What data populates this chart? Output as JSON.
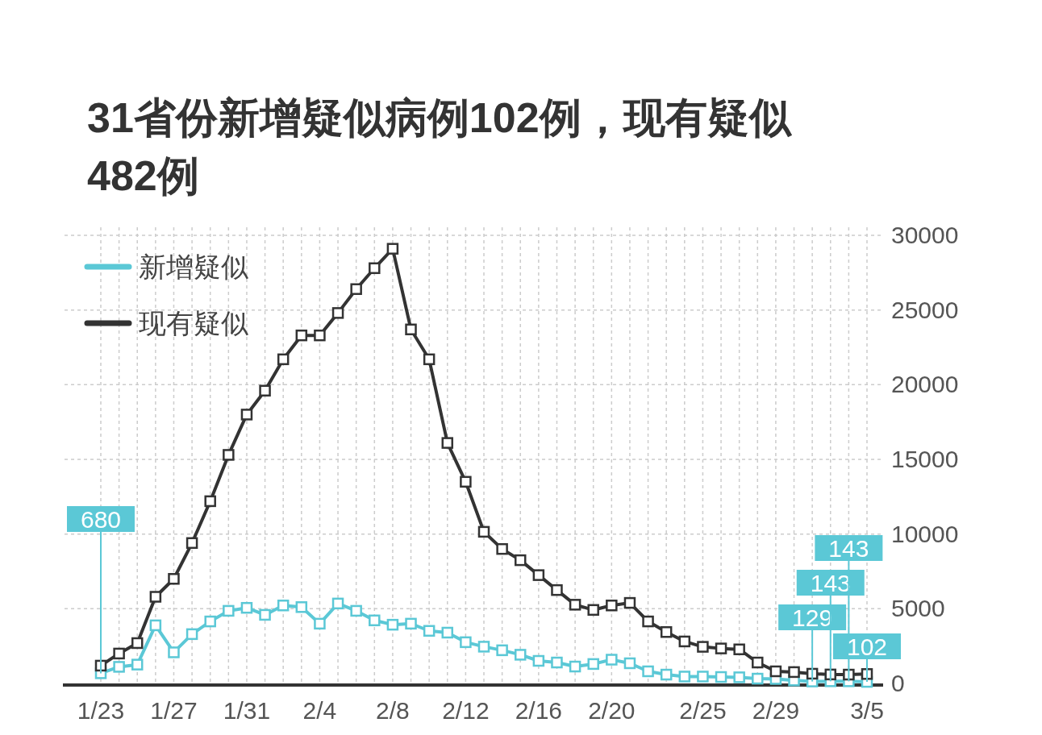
{
  "chart_data": {
    "type": "line",
    "title": "31省份新增疑似病例102例，现有疑似482例",
    "categories": [
      "1/23",
      null,
      null,
      null,
      "1/27",
      null,
      null,
      null,
      "1/31",
      null,
      null,
      null,
      "2/4",
      null,
      null,
      null,
      "2/8",
      null,
      null,
      null,
      "2/12",
      null,
      null,
      null,
      "2/16",
      null,
      null,
      null,
      "2/20",
      null,
      null,
      null,
      null,
      "2/25",
      null,
      null,
      null,
      "2/29",
      null,
      null,
      null,
      null,
      "3/5"
    ],
    "series": [
      {
        "name": "新增疑似",
        "color": "#5bc8d6",
        "values": [
          680,
          1110,
          1260,
          3890,
          2080,
          3300,
          4150,
          4860,
          5060,
          4590,
          5220,
          5110,
          4000,
          5350,
          4860,
          4220,
          3930,
          4000,
          3520,
          3400,
          2760,
          2460,
          2220,
          1920,
          1510,
          1400,
          1130,
          1300,
          1590,
          1350,
          810,
          590,
          460,
          460,
          430,
          410,
          320,
          300,
          200,
          129,
          143,
          143,
          102
        ],
        "value_labels": [
          "680",
          null,
          null,
          null,
          null,
          null,
          null,
          null,
          null,
          null,
          null,
          null,
          null,
          null,
          null,
          null,
          null,
          null,
          null,
          null,
          null,
          null,
          null,
          null,
          null,
          null,
          null,
          null,
          null,
          null,
          null,
          null,
          null,
          null,
          null,
          null,
          null,
          null,
          null,
          "129",
          "143",
          "143",
          "102"
        ]
      },
      {
        "name": "现有疑似",
        "color": "#333333",
        "values": [
          1190,
          2000,
          2700,
          5800,
          7000,
          9400,
          12200,
          15300,
          18000,
          19600,
          21700,
          23300,
          23300,
          24800,
          26400,
          27800,
          29100,
          23700,
          21700,
          16100,
          13500,
          10150,
          9000,
          8250,
          7250,
          6250,
          5270,
          4920,
          5220,
          5390,
          4150,
          3440,
          2810,
          2450,
          2340,
          2280,
          1400,
          810,
          760,
          650,
          600,
          590,
          630
        ]
      }
    ],
    "ylim": [
      0,
      30000
    ],
    "yticks": [
      0,
      5000,
      10000,
      15000,
      20000,
      25000,
      30000
    ],
    "grid": true,
    "legend": "top left",
    "marker": "square"
  }
}
